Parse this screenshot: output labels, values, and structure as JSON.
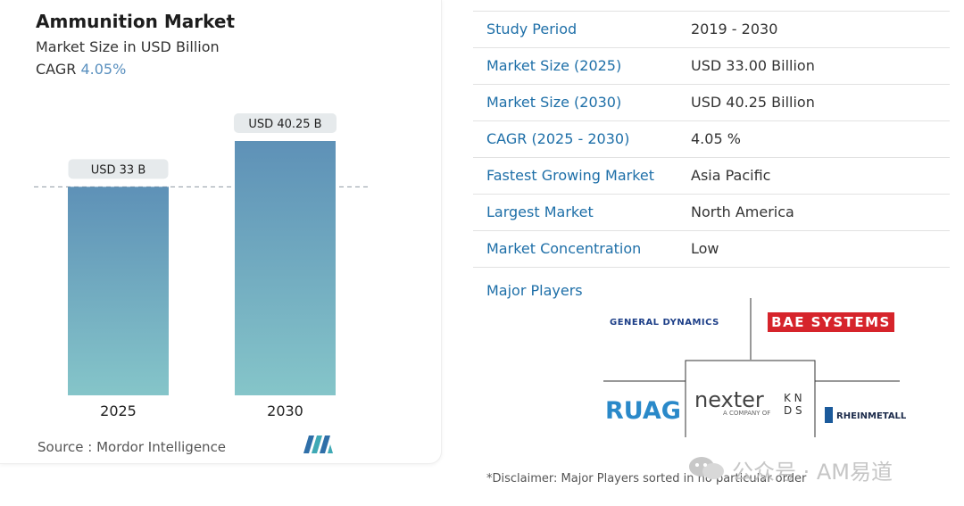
{
  "chart": {
    "title": "Ammunition Market",
    "subtitle": "Market Size in USD Billion",
    "cagr_label": "CAGR",
    "cagr_value": "4.05%",
    "source": "Source :  Mordor Intelligence",
    "colors": {
      "bar_top": "#5e91b7",
      "bar_bottom": "#85c5c9",
      "label_bg": "#e6eaec",
      "dashed": "#8f9aa3"
    }
  },
  "chart_data": {
    "type": "bar",
    "categories": [
      "2025",
      "2030"
    ],
    "values": [
      33.0,
      40.25
    ],
    "data_labels": [
      "USD 33 B",
      "USD 40.25 B"
    ],
    "title": "Ammunition Market",
    "subtitle": "Market Size in USD Billion",
    "reference_line": 33.0,
    "grid": false
  },
  "stats": [
    {
      "label": "Study Period",
      "value": "2019 - 2030"
    },
    {
      "label": "Market Size (2025)",
      "value": "USD 33.00 Billion"
    },
    {
      "label": "Market Size (2030)",
      "value": "USD 40.25 Billion"
    },
    {
      "label": "CAGR (2025 - 2030)",
      "value": "4.05 %"
    },
    {
      "label": "Fastest Growing Market",
      "value": "Asia Pacific"
    },
    {
      "label": "Largest Market",
      "value": "North America"
    },
    {
      "label": "Market Concentration",
      "value": "Low"
    }
  ],
  "players": {
    "label": "Major Players",
    "general_dynamics": "GENERAL DYNAMICS",
    "bae": "BAE SYSTEMS",
    "ruag": "RUAG",
    "nexter": "nexter",
    "nexter_sub": "A COMPANY OF",
    "knds": "K N\nD S",
    "rheinmetall": "RHEINMETALL"
  },
  "disclaimer": "*Disclaimer: Major Players sorted in no particular order",
  "watermark": "公众号 · AM易道"
}
